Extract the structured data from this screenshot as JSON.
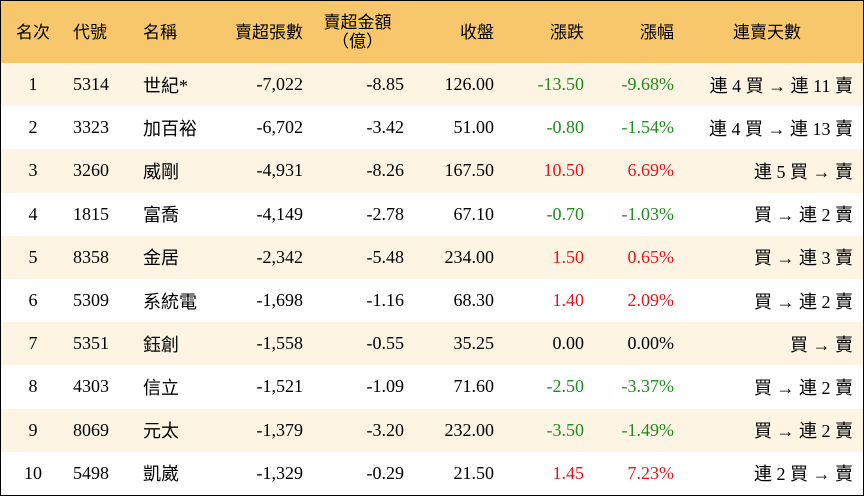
{
  "table": {
    "columns": [
      [
        "名次"
      ],
      [
        "代號"
      ],
      [
        "名稱"
      ],
      [
        "賣超張數"
      ],
      [
        "賣超金額",
        "（億）"
      ],
      [
        "收盤"
      ],
      [
        "漲跌"
      ],
      [
        "漲幅"
      ],
      [
        "連賣天數"
      ]
    ],
    "rows": [
      [
        "1",
        "5314",
        "世紀*",
        "-7,022",
        "-8.85",
        "126.00",
        "-13.50",
        "-9.68%",
        "連 4 買 → 連 11 賣"
      ],
      [
        "2",
        "3323",
        "加百裕",
        "-6,702",
        "-3.42",
        "51.00",
        "-0.80",
        "-1.54%",
        "連 4 買 → 連 13 賣"
      ],
      [
        "3",
        "3260",
        "威剛",
        "-4,931",
        "-8.26",
        "167.50",
        "10.50",
        "6.69%",
        "連 5 買 → 賣"
      ],
      [
        "4",
        "1815",
        "富喬",
        "-4,149",
        "-2.78",
        "67.10",
        "-0.70",
        "-1.03%",
        "買 → 連 2 賣"
      ],
      [
        "5",
        "8358",
        "金居",
        "-2,342",
        "-5.48",
        "234.00",
        "1.50",
        "0.65%",
        "買 → 連 3 賣"
      ],
      [
        "6",
        "5309",
        "系統電",
        "-1,698",
        "-1.16",
        "68.30",
        "1.40",
        "2.09%",
        "買 → 連 2 賣"
      ],
      [
        "7",
        "5351",
        "鈺創",
        "-1,558",
        "-0.55",
        "35.25",
        "0.00",
        "0.00%",
        "買 → 賣"
      ],
      [
        "8",
        "4303",
        "信立",
        "-1,521",
        "-1.09",
        "71.60",
        "-2.50",
        "-3.37%",
        "買 → 連 2 賣"
      ],
      [
        "9",
        "8069",
        "元太",
        "-1,379",
        "-3.20",
        "232.00",
        "-3.50",
        "-1.49%",
        "買 → 連 2 賣"
      ],
      [
        "10",
        "5498",
        "凱崴",
        "-1,329",
        "-0.29",
        "21.50",
        "1.45",
        "7.23%",
        "連 2 買 → 賣"
      ]
    ]
  }
}
